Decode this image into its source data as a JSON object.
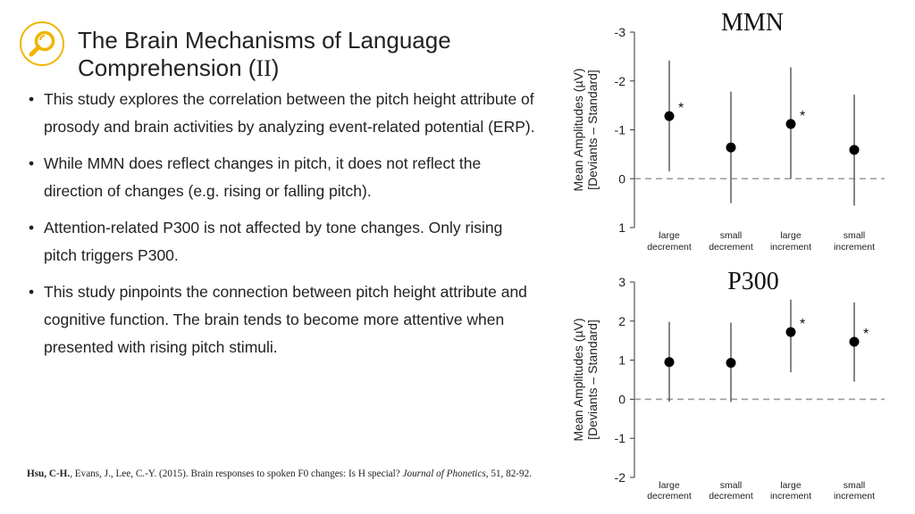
{
  "slide": {
    "title_line1": "The Brain Mechanisms of Language",
    "title_line2_prefix": "Comprehension (",
    "title_roman": "II",
    "title_line2_suffix": ")",
    "bullet_char": "•",
    "bullets": [
      "This study explores the correlation between the pitch height attribute of prosody and brain activities by analyzing event-related potential (ERP).",
      "While MMN does reflect changes in pitch, it does not reflect the direction of changes (e.g. rising or falling pitch).",
      "Attention-related P300 is not affected by tone changes. Only rising pitch triggers P300.",
      "This study pinpoints the connection between pitch height attribute and cognitive function. The brain tends to become more attentive when presented with rising pitch stimuli."
    ],
    "reference": {
      "author_bold": "Hsu, C-H.",
      "authors_rest": ", Evans, J., Lee, C.-Y. (2015). Brain responses to spoken F0 changes: Is H special? ",
      "journal": "Journal of Phonetics",
      "tail": ", 51, 82-92."
    },
    "logo_icon": "magnifier-icon",
    "colors": {
      "logo": "#f0b400",
      "text": "#222222",
      "zero_line": "#9a9a9a"
    }
  },
  "chart_data": [
    {
      "type": "scatter",
      "title": "MMN",
      "ylabel_line1": "Mean Amplitudes (µV)",
      "ylabel_line2": "[Deviants – Standard]",
      "y_inverted": true,
      "ylim": [
        -3,
        1
      ],
      "yticks": [
        -3,
        -2,
        -1,
        0,
        1
      ],
      "ytick_labels": [
        "-3",
        "-2",
        "-1",
        "0",
        "1"
      ],
      "categories": [
        "large decrement",
        "small decrement",
        "large increment",
        "small increment"
      ],
      "category_lines": [
        [
          "large",
          "decrement"
        ],
        [
          "small",
          "decrement"
        ],
        [
          "large",
          "increment"
        ],
        [
          "small",
          "increment"
        ]
      ],
      "values": [
        -1.28,
        -0.64,
        -1.12,
        -0.59
      ],
      "err_low": [
        -2.42,
        -1.78,
        -2.28,
        -1.72
      ],
      "err_high": [
        -0.15,
        0.5,
        0.0,
        0.55
      ],
      "significance": [
        "*",
        "",
        "*",
        ""
      ]
    },
    {
      "type": "scatter",
      "title": "P300",
      "ylabel_line1": "Mean Amplitudes (µV)",
      "ylabel_line2": "[Deviants – Standard]",
      "y_inverted": false,
      "ylim": [
        -2,
        3
      ],
      "yticks": [
        3,
        2,
        1,
        0,
        -1,
        -2
      ],
      "ytick_labels": [
        "3",
        "2",
        "1",
        "0",
        "-1",
        "-2"
      ],
      "categories": [
        "large decrement",
        "small decrement",
        "large increment",
        "small increment"
      ],
      "category_lines": [
        [
          "large",
          "decrement"
        ],
        [
          "small",
          "decrement"
        ],
        [
          "large",
          "increment"
        ],
        [
          "small",
          "increment"
        ]
      ],
      "values": [
        0.95,
        0.93,
        1.72,
        1.47
      ],
      "err_low": [
        -0.06,
        -0.07,
        0.69,
        0.45
      ],
      "err_high": [
        1.98,
        1.96,
        2.55,
        2.48
      ],
      "significance": [
        "",
        "",
        "*",
        "*"
      ]
    }
  ]
}
